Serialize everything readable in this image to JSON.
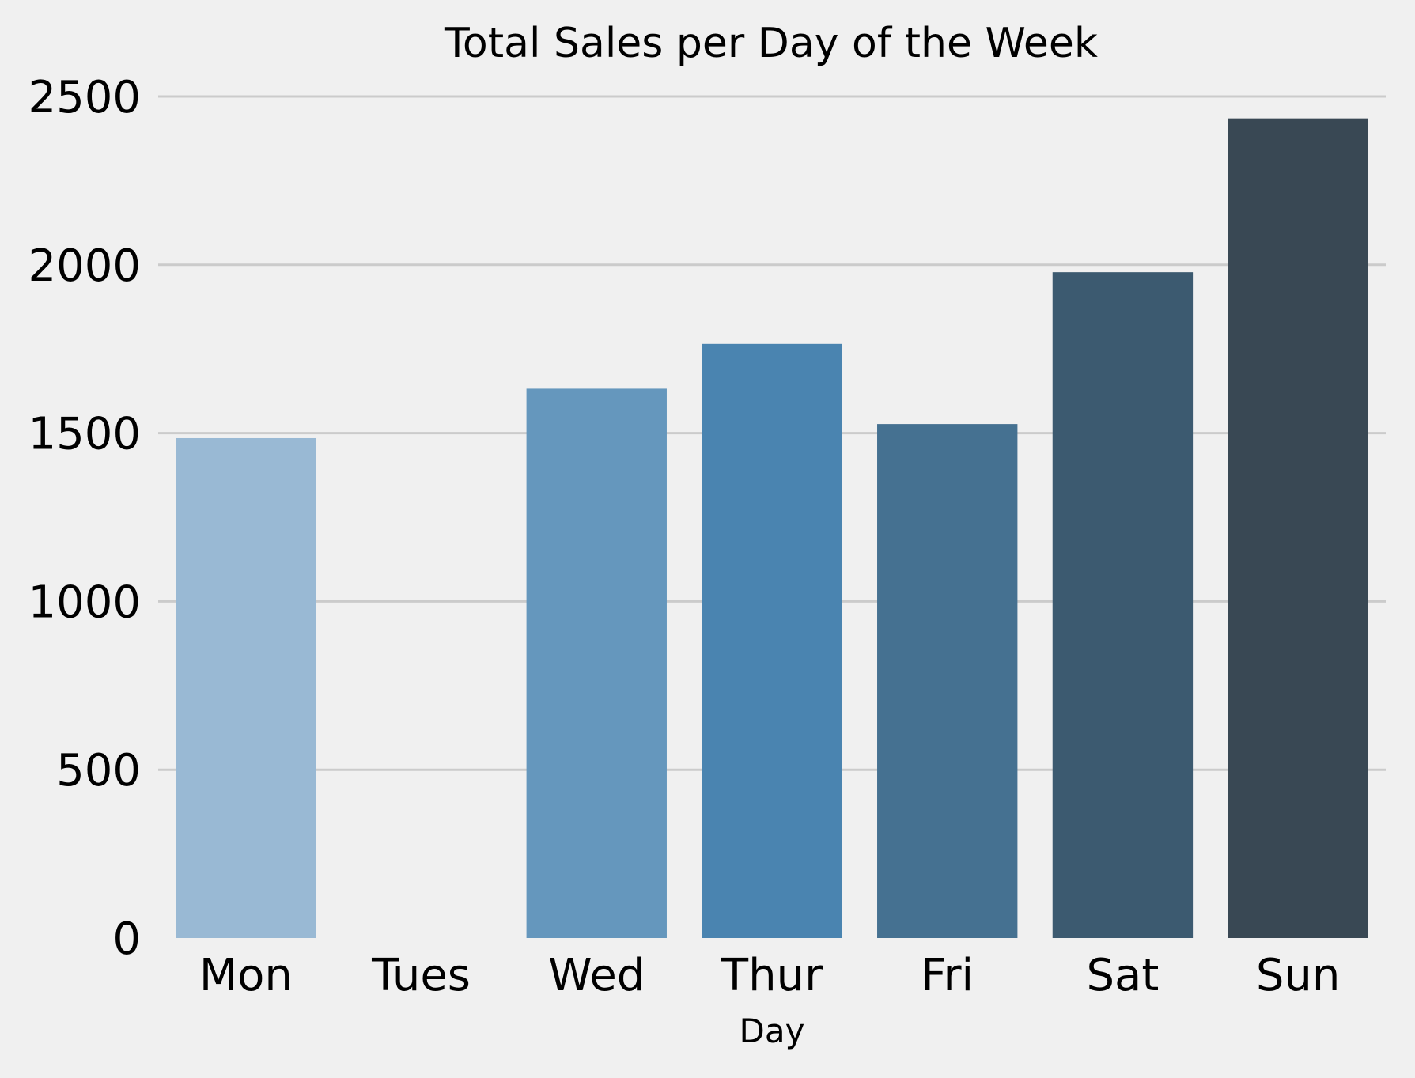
{
  "chart_data": {
    "type": "bar",
    "title": "Total Sales per Day of the Week",
    "xlabel": "Day",
    "ylabel": "",
    "categories": [
      "Mon",
      "Tues",
      "Wed",
      "Thur",
      "Fri",
      "Sat",
      "Sun"
    ],
    "values": [
      1485,
      0,
      1632,
      1765,
      1527,
      1978,
      2435
    ],
    "colors": [
      "#99b9d4",
      "#99b9d4",
      "#6597bd",
      "#4a84b0",
      "#457191",
      "#3c5a70",
      "#394854"
    ],
    "ylim": [
      0,
      2500
    ],
    "yticks": [
      "0",
      "500",
      "1000",
      "1500",
      "2000",
      "2500"
    ],
    "grid": "horizontal",
    "background": "#f0f0f0",
    "gridline_color": "#cbcbcb"
  }
}
